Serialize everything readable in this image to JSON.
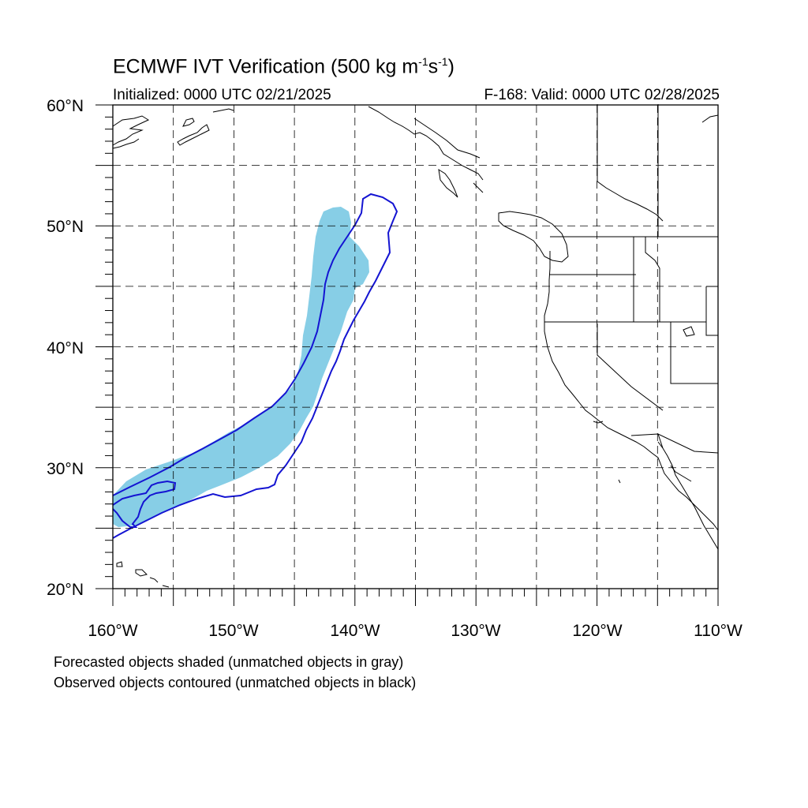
{
  "title": {
    "text": "ECMWF IVT Verification (500 kg m",
    "sup1": "-1",
    "mid": "s",
    "sup2": "-1",
    "end": ")"
  },
  "subtitle_left": "Initialized: 0000 UTC 02/21/2025",
  "subtitle_right": "F-168: Valid: 0000 UTC 02/28/2025",
  "map": {
    "lon_range": [
      -160,
      -110
    ],
    "lat_range": [
      20,
      60
    ],
    "lon_labels": [
      "160°W",
      "150°W",
      "140°W",
      "130°W",
      "120°W",
      "110°W"
    ],
    "lat_labels": [
      "20°N",
      "30°N",
      "40°N",
      "50°N",
      "60°N"
    ],
    "grid_lon_step": 5,
    "grid_lat_step": 5,
    "forecast_fill_color": "#87CEE6",
    "observed_contour_color": "#1414D2",
    "coast_color": "#000000"
  },
  "notes": {
    "line1": "Forecasted objects shaded (unmatched objects in gray)",
    "line2": "Observed objects contoured (unmatched objects in black)"
  }
}
